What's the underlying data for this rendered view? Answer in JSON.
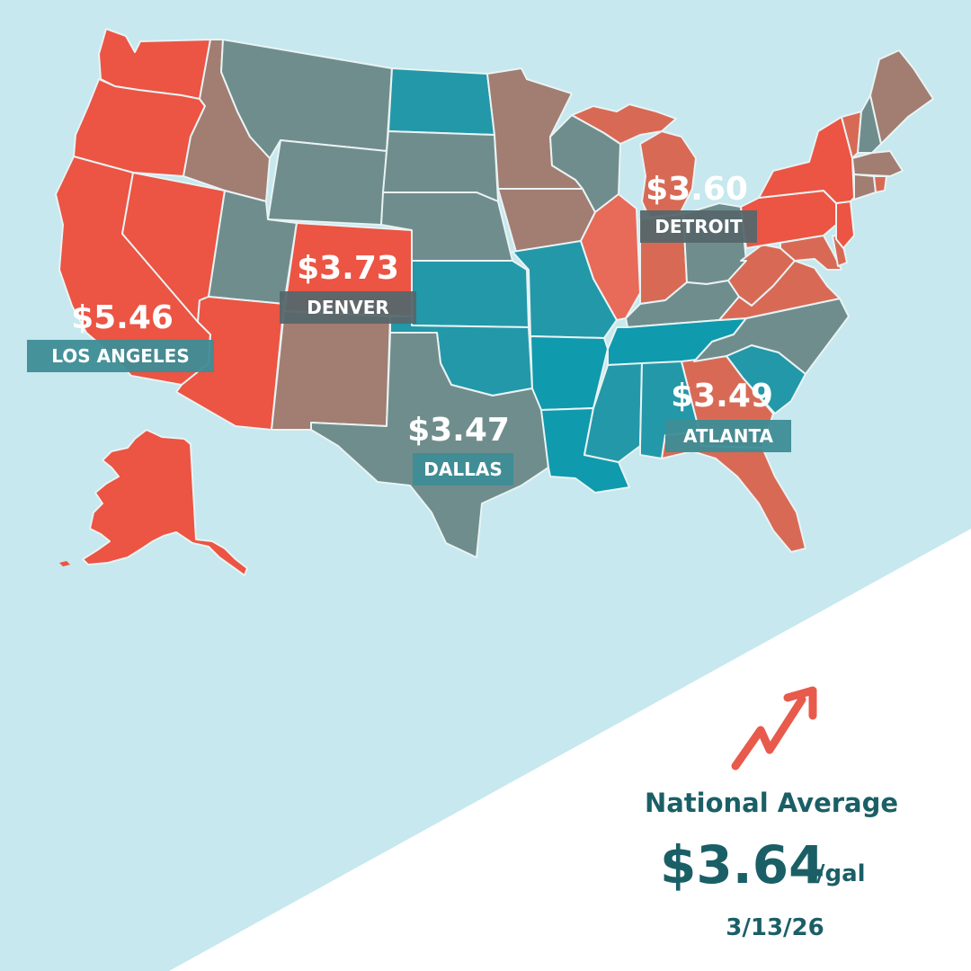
{
  "colors": {
    "background": "#c6e8ee",
    "panel": "#ffffff",
    "very_high": "#ec5443",
    "high": "#e07060",
    "mid_high": "#d86a55",
    "medium": "#a17d72",
    "low": "#6f8d8c",
    "lowest": "#2398a9",
    "label_bg": "#56676b",
    "label_bg_alt": "#3e8d96",
    "accent_text": "#1b5f66",
    "trend_arrow": "#e85a4c"
  },
  "cities": [
    {
      "id": "los-angeles",
      "price": "$5.46",
      "name": "LOS ANGELES"
    },
    {
      "id": "denver",
      "price": "$3.73",
      "name": "DENVER"
    },
    {
      "id": "dallas",
      "price": "$3.47",
      "name": "DALLAS"
    },
    {
      "id": "detroit",
      "price": "$3.60",
      "name": "DETROIT"
    },
    {
      "id": "atlanta",
      "price": "$3.49",
      "name": "ATLANTA"
    }
  ],
  "national": {
    "title": "National Average",
    "value": "$3.64",
    "unit": "/gal",
    "date": "3/13/26",
    "trend_icon": "trending-up-arrow-icon"
  }
}
